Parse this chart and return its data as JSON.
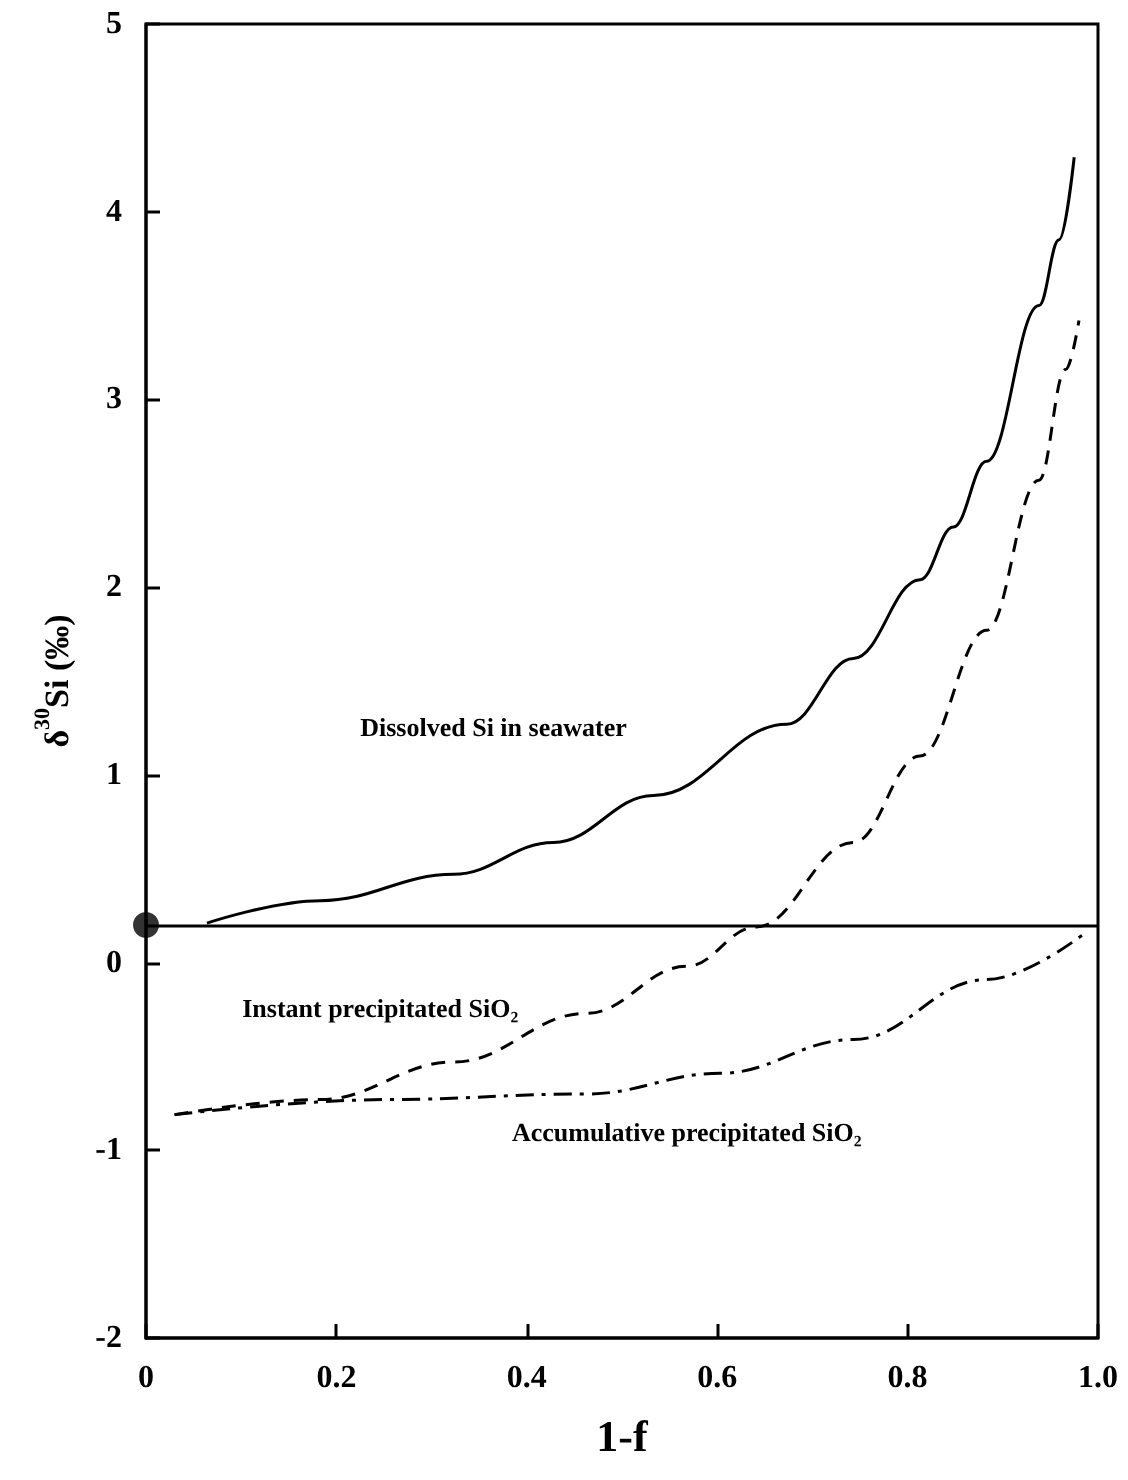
{
  "chart_data": {
    "type": "line",
    "xlabel": "1-f",
    "ylabel": "δ$^{30}$Si (‰)",
    "xlim": [
      0,
      1
    ],
    "xticks": [
      0,
      0.2,
      0.4,
      0.6,
      0.8,
      {
        "value": 1,
        "label": "1.0"
      }
    ],
    "ylim": [
      -2,
      5
    ],
    "yticks": [
      -2,
      -1,
      0,
      1,
      2,
      3,
      4,
      5
    ],
    "grid": false,
    "marker": "none",
    "series": [
      {
        "color": "#000000",
        "line_style": "solid",
        "x": [
          0.064,
          0.183,
          0.323,
          0.428,
          0.533,
          0.673,
          0.743,
          0.813,
          0.848,
          0.883,
          0.938,
          0.959,
          0.975
        ],
        "values": [
          0.21,
          0.33,
          0.47,
          0.64,
          0.89,
          1.27,
          1.62,
          2.04,
          2.32,
          2.67,
          3.5,
          3.85,
          4.29
        ]
      },
      {
        "color": "#000000",
        "line_style": "dashed",
        "x": [
          0.03,
          0.183,
          0.323,
          0.463,
          0.568,
          0.641,
          0.743,
          0.813,
          0.883,
          0.938,
          0.966,
          0.98
        ],
        "values": [
          -0.81,
          -0.73,
          -0.53,
          -0.27,
          -0.02,
          0.19,
          0.64,
          1.1,
          1.77,
          2.57,
          3.16,
          3.42
        ]
      },
      {
        "color": "#000000",
        "line_style": "dashdot",
        "x": [
          0.03,
          0.253,
          0.463,
          0.603,
          0.743,
          0.883,
          0.987
        ],
        "values": [
          -0.81,
          -0.73,
          -0.7,
          -0.59,
          -0.41,
          -0.09,
          0.16
        ]
      },
      {
        "type": "scatter",
        "marker": "circle",
        "color": "#000000",
        "x": [
          0
        ],
        "values": [
          0.2
        ]
      }
    ],
    "ref_lines": [
      {
        "axis": "y",
        "value": 0.2,
        "color": "#000000",
        "line_style": "solid"
      }
    ],
    "annotations": [
      "Dissolved Si in seawater",
      "Instant precipitated SiO₂",
      "Accumulative precipitated SiO₂"
    ]
  }
}
